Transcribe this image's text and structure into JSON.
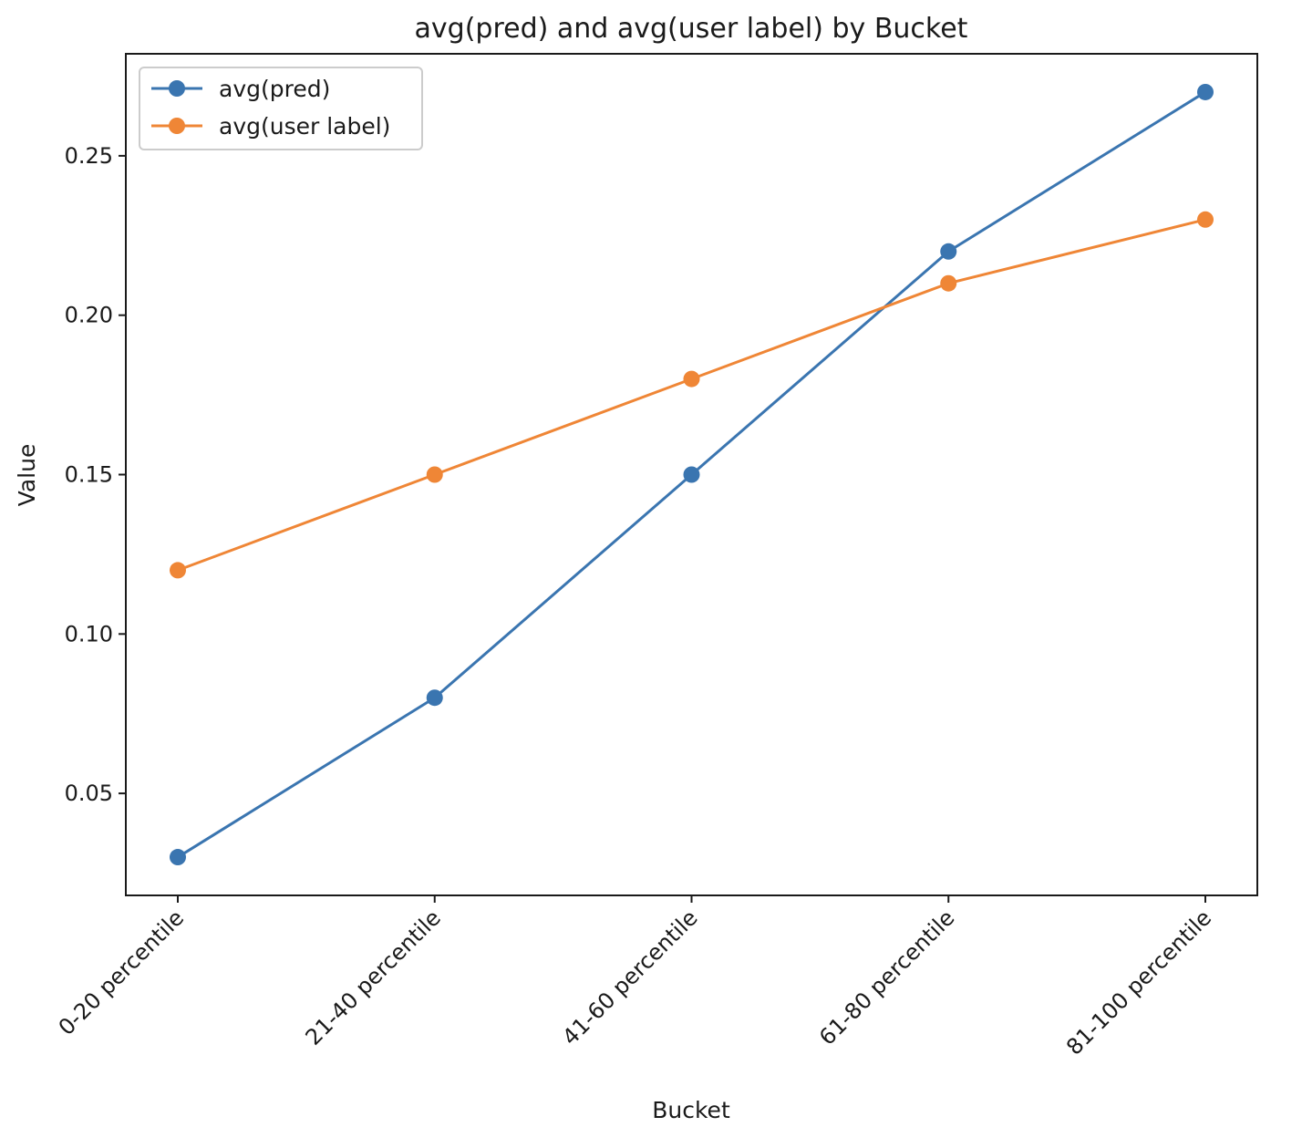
{
  "chart_data": {
    "type": "line",
    "title": "avg(pred) and avg(user label) by Bucket",
    "xlabel": "Bucket",
    "ylabel": "Value",
    "categories": [
      "0-20 percentile",
      "21-40 percentile",
      "41-60 percentile",
      "61-80 percentile",
      "81-100 percentile"
    ],
    "series": [
      {
        "name": "avg(pred)",
        "values": [
          0.03,
          0.08,
          0.15,
          0.22,
          0.27
        ],
        "color": "#3a75b0"
      },
      {
        "name": "avg(user label)",
        "values": [
          0.12,
          0.15,
          0.18,
          0.21,
          0.23
        ],
        "color": "#ef8636"
      }
    ],
    "ylim": [
      0.018,
      0.282
    ],
    "yticks": [
      0.05,
      0.1,
      0.15,
      0.2,
      0.25
    ],
    "ytick_labels": [
      "0.05",
      "0.10",
      "0.15",
      "0.20",
      "0.25"
    ],
    "grid": false,
    "legend_position": "top-left"
  }
}
